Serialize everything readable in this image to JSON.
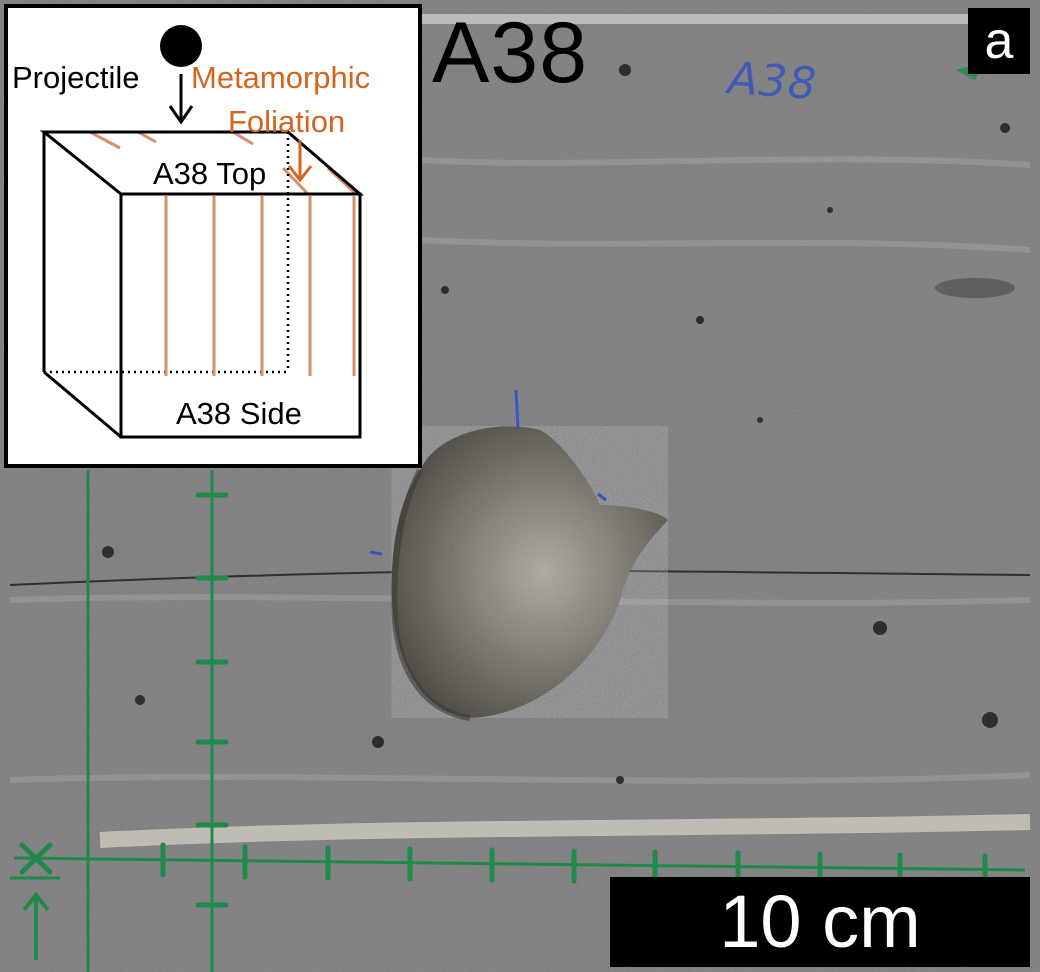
{
  "panel": {
    "sample_label": "A38",
    "panel_letter": "a",
    "handwritten_mark": "A38",
    "scale_bar_label": "10 cm"
  },
  "inset": {
    "projectile_label": "Projectile",
    "foliation_label_line1": "Metamorphic",
    "foliation_label_line2": "Foliation",
    "top_face_label": "A38 Top",
    "side_face_label": "A38 Side"
  },
  "colors": {
    "rock_gray": "#8a8a8a",
    "grid_green": "#1f8a4c",
    "foliation_orange": "#d6641f",
    "ink_blue": "#3b56b8"
  }
}
